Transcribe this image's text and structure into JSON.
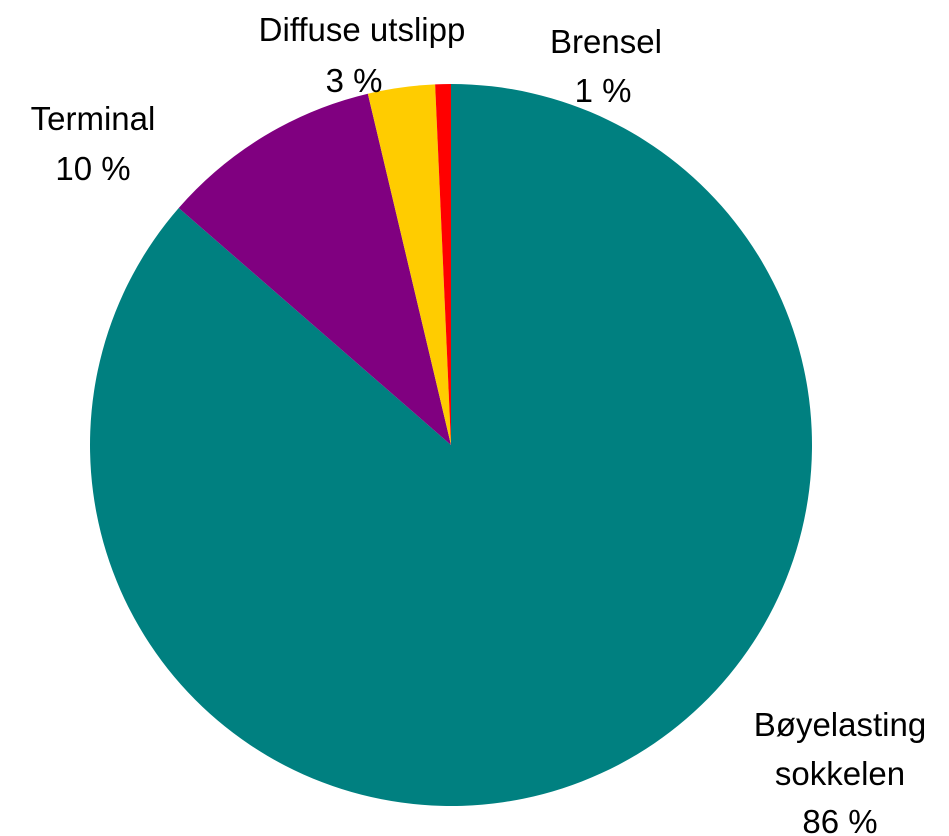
{
  "chart_data": {
    "type": "pie",
    "title": "",
    "slices": [
      {
        "label_lines": [
          "Bøyelasting",
          "sokkelen"
        ],
        "pct_text": "86 %",
        "value": 86.4,
        "color": "#008080"
      },
      {
        "label_lines": [
          "Terminal"
        ],
        "pct_text": "10 %",
        "value": 9.9,
        "color": "#800080"
      },
      {
        "label_lines": [
          "Diffuse utslipp"
        ],
        "pct_text": "3 %",
        "value": 3.0,
        "color": "#FFCC00"
      },
      {
        "label_lines": [
          "Brensel"
        ],
        "pct_text": "1 %",
        "value": 0.7,
        "color": "#FF0000"
      }
    ]
  }
}
